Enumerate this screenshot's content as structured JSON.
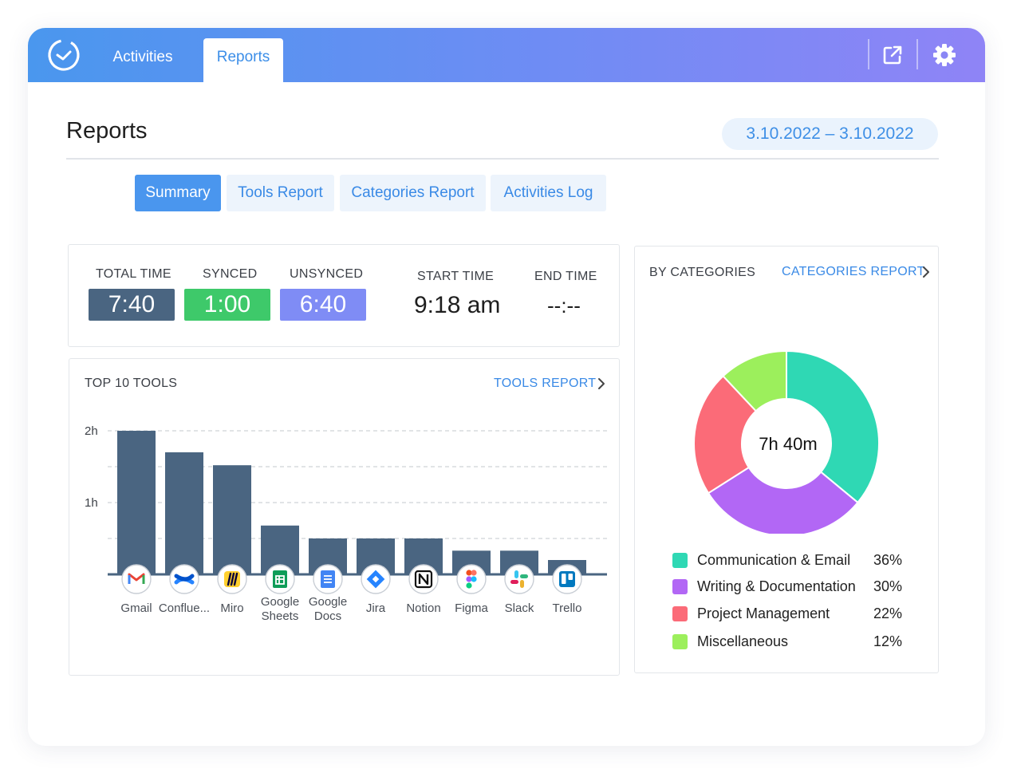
{
  "nav": {
    "tabs": [
      {
        "label": "Activities",
        "active": false
      },
      {
        "label": "Reports",
        "active": true
      }
    ],
    "icons": [
      "clock-logo-icon",
      "open-external-icon",
      "gear-icon"
    ]
  },
  "header": {
    "title": "Reports",
    "date_range": "3.10.2022 – 3.10.2022"
  },
  "subtabs": [
    {
      "label": "Summary",
      "active": true
    },
    {
      "label": "Tools Report",
      "active": false
    },
    {
      "label": "Categories Report",
      "active": false
    },
    {
      "label": "Activities Log",
      "active": false
    }
  ],
  "stats": {
    "total_label": "TOTAL TIME",
    "total_value": "7:40",
    "synced_label": "SYNCED",
    "synced_value": "1:00",
    "unsynced_label": "UNSYNCED",
    "unsynced_value": "6:40",
    "start_label": "START  TIME",
    "start_value": "9:18 am",
    "end_label": "END TIME",
    "end_value": "--:--",
    "colors": {
      "total": "#4a6581",
      "synced": "#3ec96a",
      "unsynced": "#7f8cf5"
    }
  },
  "tools": {
    "heading": "TOP 10 TOOLS",
    "link": "TOOLS REPORT"
  },
  "categories": {
    "heading": "BY CATEGORIES",
    "link": "CATEGORIES REPORT",
    "total": "7h 40m",
    "items": [
      {
        "label": "Communication & Email",
        "pct": "36%",
        "color": "#2fd8b4"
      },
      {
        "label": "Writing & Documentation",
        "pct": "30%",
        "color": "#b267f5"
      },
      {
        "label": "Project Management",
        "pct": "22%",
        "color": "#fb6b78"
      },
      {
        "label": "Miscellaneous",
        "pct": "12%",
        "color": "#9cef5c"
      }
    ]
  },
  "chart_data": [
    {
      "type": "bar",
      "title": "TOP 10 TOOLS",
      "categories": [
        "Gmail",
        "Conflue...",
        "Miro",
        "Google Sheets",
        "Google Docs",
        "Jira",
        "Notion",
        "Figma",
        "Slack",
        "Trello"
      ],
      "values": [
        2.0,
        1.7,
        1.52,
        0.68,
        0.5,
        0.5,
        0.5,
        0.33,
        0.33,
        0.2
      ],
      "unit": "hours",
      "y_ticks": [
        {
          "value": 1,
          "label": "1h"
        },
        {
          "value": 2,
          "label": "2h"
        }
      ],
      "ylim": [
        0,
        2
      ],
      "grid": true,
      "bar_color": "#4a6581",
      "icons": [
        "gmail-icon",
        "confluence-icon",
        "miro-icon",
        "google-sheets-icon",
        "google-docs-icon",
        "jira-icon",
        "notion-icon",
        "figma-icon",
        "slack-icon",
        "trello-icon"
      ]
    },
    {
      "type": "pie",
      "title": "BY CATEGORIES",
      "center_label": "7h 40m",
      "labels": [
        "Communication & Email",
        "Writing & Documentation",
        "Project Management",
        "Miscellaneous"
      ],
      "values": [
        36,
        30,
        22,
        12
      ],
      "colors": [
        "#2fd8b4",
        "#b267f5",
        "#fb6b78",
        "#9cef5c"
      ],
      "legend": "bottom"
    }
  ]
}
